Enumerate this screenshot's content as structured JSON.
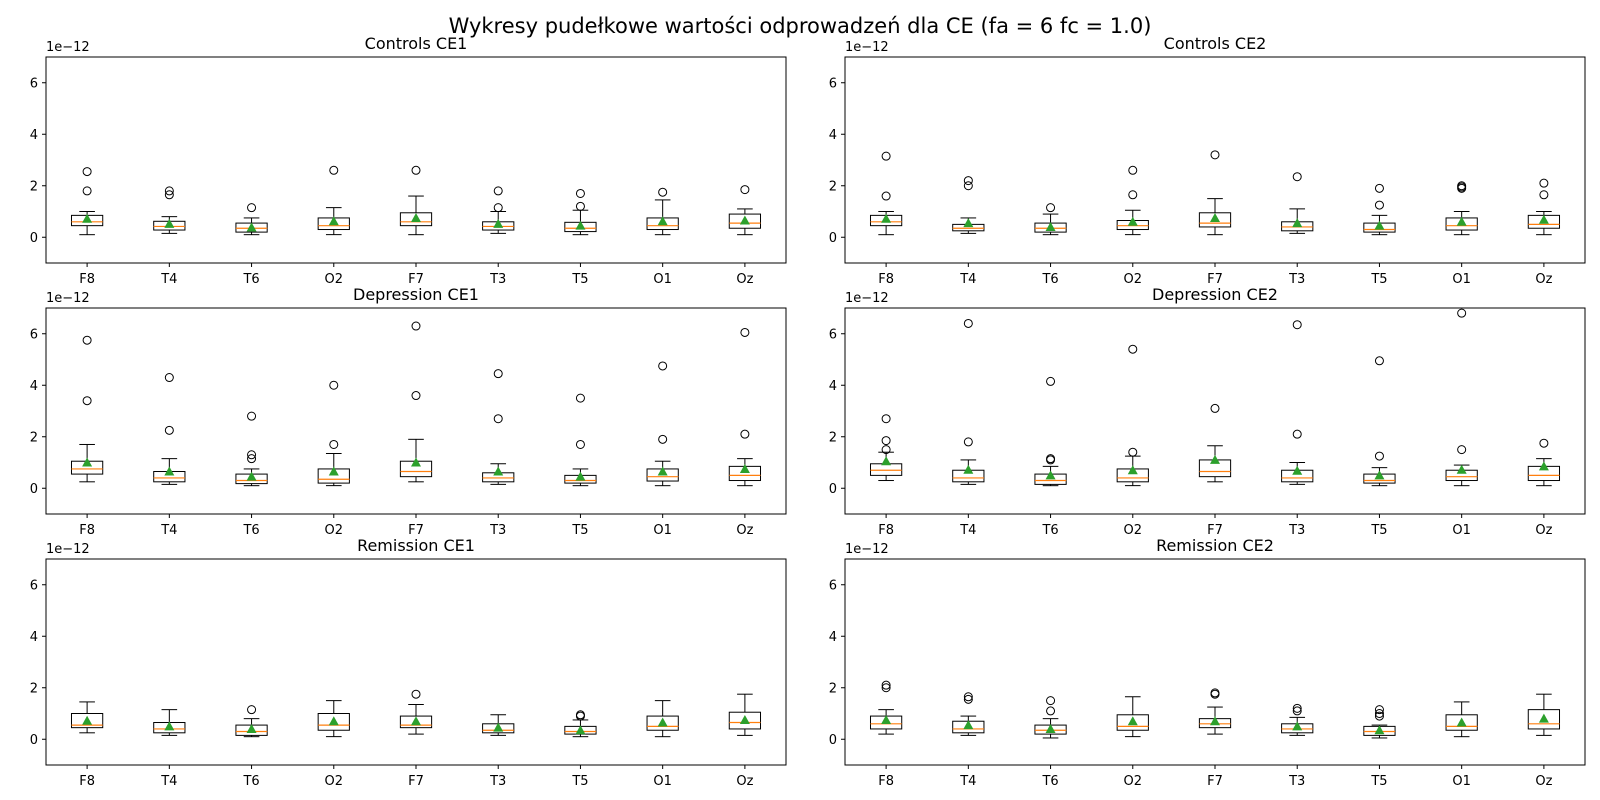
{
  "title": "Wykresy pudełkowe wartości odprowadzeń dla CE (fa = 6 fc = 1.0)",
  "colors": {
    "box": "#000000",
    "median": "#ff7f0e",
    "mean": "#2ca02c",
    "flier": "#000000",
    "background": "#ffffff"
  },
  "chart_data": [
    {
      "type": "box",
      "title": "Controls CE1",
      "offset_label": "1e−12",
      "ylim": [
        -1,
        7
      ],
      "yticks": [
        "0",
        "2",
        "4",
        "6"
      ],
      "ytick_values": [
        0,
        2,
        4,
        6
      ],
      "categories": [
        "F8",
        "T4",
        "T6",
        "O2",
        "F7",
        "T3",
        "T5",
        "O1",
        "Oz"
      ],
      "boxes": [
        {
          "whislo": 0.1,
          "q1": 0.45,
          "med": 0.6,
          "q3": 0.85,
          "whishi": 1.0,
          "mean": 0.72,
          "fliers": [
            1.8,
            2.55
          ]
        },
        {
          "whislo": 0.15,
          "q1": 0.28,
          "med": 0.42,
          "q3": 0.62,
          "whishi": 0.8,
          "mean": 0.52,
          "fliers": [
            1.65,
            1.8
          ]
        },
        {
          "whislo": 0.1,
          "q1": 0.2,
          "med": 0.35,
          "q3": 0.55,
          "whishi": 0.75,
          "mean": 0.38,
          "fliers": [
            1.15
          ]
        },
        {
          "whislo": 0.1,
          "q1": 0.3,
          "med": 0.45,
          "q3": 0.75,
          "whishi": 1.15,
          "mean": 0.62,
          "fliers": [
            2.6
          ]
        },
        {
          "whislo": 0.1,
          "q1": 0.45,
          "med": 0.6,
          "q3": 0.95,
          "whishi": 1.6,
          "mean": 0.75,
          "fliers": [
            2.6
          ]
        },
        {
          "whislo": 0.15,
          "q1": 0.28,
          "med": 0.42,
          "q3": 0.6,
          "whishi": 1.0,
          "mean": 0.52,
          "fliers": [
            1.15,
            1.8
          ]
        },
        {
          "whislo": 0.1,
          "q1": 0.22,
          "med": 0.35,
          "q3": 0.58,
          "whishi": 1.05,
          "mean": 0.45,
          "fliers": [
            1.2,
            1.7
          ]
        },
        {
          "whislo": 0.1,
          "q1": 0.3,
          "med": 0.45,
          "q3": 0.75,
          "whishi": 1.45,
          "mean": 0.62,
          "fliers": [
            1.75
          ]
        },
        {
          "whislo": 0.1,
          "q1": 0.35,
          "med": 0.55,
          "q3": 0.9,
          "whishi": 1.1,
          "mean": 0.65,
          "fliers": [
            1.85
          ]
        }
      ]
    },
    {
      "type": "box",
      "title": "Controls CE2",
      "offset_label": "1e−12",
      "ylim": [
        -1,
        7
      ],
      "yticks": [
        "0",
        "2",
        "4",
        "6"
      ],
      "ytick_values": [
        0,
        2,
        4,
        6
      ],
      "categories": [
        "F8",
        "T4",
        "T6",
        "O2",
        "F7",
        "T3",
        "T5",
        "O1",
        "Oz"
      ],
      "boxes": [
        {
          "whislo": 0.1,
          "q1": 0.45,
          "med": 0.6,
          "q3": 0.85,
          "whishi": 1.0,
          "mean": 0.72,
          "fliers": [
            1.6,
            3.15
          ]
        },
        {
          "whislo": 0.15,
          "q1": 0.25,
          "med": 0.35,
          "q3": 0.5,
          "whishi": 0.75,
          "mean": 0.55,
          "fliers": [
            2.0,
            2.2
          ]
        },
        {
          "whislo": 0.1,
          "q1": 0.2,
          "med": 0.35,
          "q3": 0.55,
          "whishi": 0.9,
          "mean": 0.4,
          "fliers": [
            1.15
          ]
        },
        {
          "whislo": 0.1,
          "q1": 0.3,
          "med": 0.45,
          "q3": 0.65,
          "whishi": 1.05,
          "mean": 0.6,
          "fliers": [
            1.65,
            2.6
          ]
        },
        {
          "whislo": 0.1,
          "q1": 0.4,
          "med": 0.55,
          "q3": 0.95,
          "whishi": 1.5,
          "mean": 0.75,
          "fliers": [
            3.2
          ]
        },
        {
          "whislo": 0.15,
          "q1": 0.25,
          "med": 0.4,
          "q3": 0.6,
          "whishi": 1.1,
          "mean": 0.55,
          "fliers": [
            2.35
          ]
        },
        {
          "whislo": 0.1,
          "q1": 0.2,
          "med": 0.3,
          "q3": 0.55,
          "whishi": 0.85,
          "mean": 0.45,
          "fliers": [
            1.25,
            1.9
          ]
        },
        {
          "whislo": 0.1,
          "q1": 0.28,
          "med": 0.45,
          "q3": 0.75,
          "whishi": 1.0,
          "mean": 0.6,
          "fliers": [
            1.9,
            1.95,
            2.0
          ]
        },
        {
          "whislo": 0.1,
          "q1": 0.35,
          "med": 0.5,
          "q3": 0.85,
          "whishi": 1.0,
          "mean": 0.68,
          "fliers": [
            1.65,
            2.1
          ]
        }
      ]
    },
    {
      "type": "box",
      "title": "Depression CE1",
      "offset_label": "1e−12",
      "ylim": [
        -1,
        7
      ],
      "yticks": [
        "0",
        "2",
        "4",
        "6"
      ],
      "ytick_values": [
        0,
        2,
        4,
        6
      ],
      "categories": [
        "F8",
        "T4",
        "T6",
        "O2",
        "F7",
        "T3",
        "T5",
        "O1",
        "Oz"
      ],
      "boxes": [
        {
          "whislo": 0.25,
          "q1": 0.55,
          "med": 0.75,
          "q3": 1.05,
          "whishi": 1.7,
          "mean": 1.0,
          "fliers": [
            3.4,
            5.75
          ]
        },
        {
          "whislo": 0.15,
          "q1": 0.25,
          "med": 0.4,
          "q3": 0.65,
          "whishi": 1.15,
          "mean": 0.65,
          "fliers": [
            2.25,
            4.3
          ]
        },
        {
          "whislo": 0.1,
          "q1": 0.18,
          "med": 0.3,
          "q3": 0.55,
          "whishi": 0.75,
          "mean": 0.45,
          "fliers": [
            1.15,
            1.3,
            2.8
          ]
        },
        {
          "whislo": 0.1,
          "q1": 0.2,
          "med": 0.35,
          "q3": 0.75,
          "whishi": 1.35,
          "mean": 0.65,
          "fliers": [
            1.7,
            4.0
          ]
        },
        {
          "whislo": 0.25,
          "q1": 0.45,
          "med": 0.65,
          "q3": 1.05,
          "whishi": 1.9,
          "mean": 1.0,
          "fliers": [
            3.6,
            6.3
          ]
        },
        {
          "whislo": 0.15,
          "q1": 0.25,
          "med": 0.4,
          "q3": 0.6,
          "whishi": 0.95,
          "mean": 0.65,
          "fliers": [
            2.7,
            4.45
          ]
        },
        {
          "whislo": 0.1,
          "q1": 0.2,
          "med": 0.3,
          "q3": 0.5,
          "whishi": 0.75,
          "mean": 0.45,
          "fliers": [
            1.7,
            3.5
          ]
        },
        {
          "whislo": 0.1,
          "q1": 0.28,
          "med": 0.45,
          "q3": 0.75,
          "whishi": 1.05,
          "mean": 0.65,
          "fliers": [
            1.9,
            4.75
          ]
        },
        {
          "whislo": 0.1,
          "q1": 0.3,
          "med": 0.5,
          "q3": 0.85,
          "whishi": 1.15,
          "mean": 0.75,
          "fliers": [
            2.1,
            6.05
          ]
        }
      ]
    },
    {
      "type": "box",
      "title": "Depression CE2",
      "offset_label": "1e−12",
      "ylim": [
        -1,
        7
      ],
      "yticks": [
        "0",
        "2",
        "4",
        "6"
      ],
      "ytick_values": [
        0,
        2,
        4,
        6
      ],
      "categories": [
        "F8",
        "T4",
        "T6",
        "O2",
        "F7",
        "T3",
        "T5",
        "O1",
        "Oz"
      ],
      "boxes": [
        {
          "whislo": 0.3,
          "q1": 0.5,
          "med": 0.7,
          "q3": 0.95,
          "whishi": 1.4,
          "mean": 1.05,
          "fliers": [
            1.5,
            1.85,
            2.7
          ]
        },
        {
          "whislo": 0.15,
          "q1": 0.25,
          "med": 0.4,
          "q3": 0.7,
          "whishi": 1.1,
          "mean": 0.72,
          "fliers": [
            1.8,
            6.4
          ]
        },
        {
          "whislo": 0.1,
          "q1": 0.15,
          "med": 0.3,
          "q3": 0.55,
          "whishi": 0.85,
          "mean": 0.5,
          "fliers": [
            1.1,
            1.15,
            4.15
          ]
        },
        {
          "whislo": 0.1,
          "q1": 0.25,
          "med": 0.4,
          "q3": 0.75,
          "whishi": 1.25,
          "mean": 0.7,
          "fliers": [
            1.4,
            5.4
          ]
        },
        {
          "whislo": 0.25,
          "q1": 0.45,
          "med": 0.65,
          "q3": 1.1,
          "whishi": 1.65,
          "mean": 1.1,
          "fliers": [
            3.1
          ]
        },
        {
          "whislo": 0.15,
          "q1": 0.25,
          "med": 0.4,
          "q3": 0.7,
          "whishi": 1.0,
          "mean": 0.68,
          "fliers": [
            2.1,
            6.35
          ]
        },
        {
          "whislo": 0.1,
          "q1": 0.2,
          "med": 0.3,
          "q3": 0.55,
          "whishi": 0.8,
          "mean": 0.5,
          "fliers": [
            1.25,
            4.95
          ]
        },
        {
          "whislo": 0.1,
          "q1": 0.3,
          "med": 0.45,
          "q3": 0.7,
          "whishi": 0.9,
          "mean": 0.72,
          "fliers": [
            1.5,
            6.8
          ]
        },
        {
          "whislo": 0.1,
          "q1": 0.3,
          "med": 0.5,
          "q3": 0.85,
          "whishi": 1.15,
          "mean": 0.85,
          "fliers": [
            1.75
          ]
        }
      ]
    },
    {
      "type": "box",
      "title": "Remission CE1",
      "offset_label": "1e−12",
      "ylim": [
        -1,
        7
      ],
      "yticks": [
        "0",
        "2",
        "4",
        "6"
      ],
      "ytick_values": [
        0,
        2,
        4,
        6
      ],
      "categories": [
        "F8",
        "T4",
        "T6",
        "O2",
        "F7",
        "T3",
        "T5",
        "O1",
        "Oz"
      ],
      "boxes": [
        {
          "whislo": 0.25,
          "q1": 0.45,
          "med": 0.55,
          "q3": 1.0,
          "whishi": 1.45,
          "mean": 0.72,
          "fliers": []
        },
        {
          "whislo": 0.15,
          "q1": 0.25,
          "med": 0.4,
          "q3": 0.65,
          "whishi": 1.15,
          "mean": 0.5,
          "fliers": []
        },
        {
          "whislo": 0.1,
          "q1": 0.15,
          "med": 0.3,
          "q3": 0.55,
          "whishi": 0.8,
          "mean": 0.4,
          "fliers": [
            1.15
          ]
        },
        {
          "whislo": 0.1,
          "q1": 0.35,
          "med": 0.55,
          "q3": 1.0,
          "whishi": 1.5,
          "mean": 0.7,
          "fliers": []
        },
        {
          "whislo": 0.2,
          "q1": 0.45,
          "med": 0.55,
          "q3": 0.9,
          "whishi": 1.35,
          "mean": 0.7,
          "fliers": [
            1.75
          ]
        },
        {
          "whislo": 0.15,
          "q1": 0.25,
          "med": 0.35,
          "q3": 0.6,
          "whishi": 0.95,
          "mean": 0.45,
          "fliers": []
        },
        {
          "whislo": 0.1,
          "q1": 0.2,
          "med": 0.3,
          "q3": 0.5,
          "whishi": 0.75,
          "mean": 0.35,
          "fliers": [
            0.9,
            0.95
          ]
        },
        {
          "whislo": 0.1,
          "q1": 0.35,
          "med": 0.5,
          "q3": 0.9,
          "whishi": 1.5,
          "mean": 0.65,
          "fliers": []
        },
        {
          "whislo": 0.15,
          "q1": 0.4,
          "med": 0.65,
          "q3": 1.05,
          "whishi": 1.75,
          "mean": 0.75,
          "fliers": []
        }
      ]
    },
    {
      "type": "box",
      "title": "Remission CE2",
      "offset_label": "1e−12",
      "ylim": [
        -1,
        7
      ],
      "yticks": [
        "0",
        "2",
        "4",
        "6"
      ],
      "ytick_values": [
        0,
        2,
        4,
        6
      ],
      "categories": [
        "F8",
        "T4",
        "T6",
        "O2",
        "F7",
        "T3",
        "T5",
        "O1",
        "Oz"
      ],
      "boxes": [
        {
          "whislo": 0.2,
          "q1": 0.4,
          "med": 0.6,
          "q3": 0.9,
          "whishi": 1.15,
          "mean": 0.75,
          "fliers": [
            2.0,
            2.1
          ]
        },
        {
          "whislo": 0.15,
          "q1": 0.25,
          "med": 0.4,
          "q3": 0.7,
          "whishi": 0.9,
          "mean": 0.55,
          "fliers": [
            1.55,
            1.65
          ]
        },
        {
          "whislo": 0.05,
          "q1": 0.2,
          "med": 0.35,
          "q3": 0.55,
          "whishi": 0.8,
          "mean": 0.4,
          "fliers": [
            1.1,
            1.5
          ]
        },
        {
          "whislo": 0.1,
          "q1": 0.35,
          "med": 0.5,
          "q3": 0.95,
          "whishi": 1.65,
          "mean": 0.7,
          "fliers": []
        },
        {
          "whislo": 0.2,
          "q1": 0.45,
          "med": 0.6,
          "q3": 0.8,
          "whishi": 1.25,
          "mean": 0.7,
          "fliers": [
            1.75,
            1.8
          ]
        },
        {
          "whislo": 0.15,
          "q1": 0.25,
          "med": 0.4,
          "q3": 0.6,
          "whishi": 0.85,
          "mean": 0.5,
          "fliers": [
            1.1,
            1.2
          ]
        },
        {
          "whislo": 0.05,
          "q1": 0.15,
          "med": 0.3,
          "q3": 0.5,
          "whishi": 0.55,
          "mean": 0.35,
          "fliers": [
            0.9,
            1.0,
            1.15
          ]
        },
        {
          "whislo": 0.1,
          "q1": 0.35,
          "med": 0.5,
          "q3": 0.95,
          "whishi": 1.45,
          "mean": 0.65,
          "fliers": []
        },
        {
          "whislo": 0.15,
          "q1": 0.4,
          "med": 0.6,
          "q3": 1.15,
          "whishi": 1.75,
          "mean": 0.8,
          "fliers": []
        }
      ]
    }
  ]
}
